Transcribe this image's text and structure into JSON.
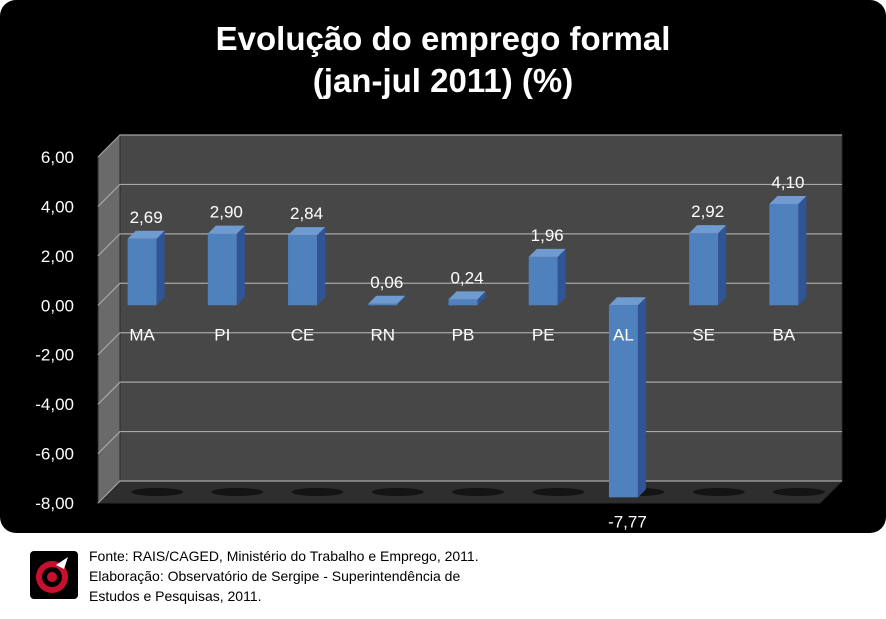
{
  "chart_data": {
    "type": "bar",
    "title_lines": [
      "Evolução do emprego formal",
      "(jan-jul 2011) (%)"
    ],
    "categories": [
      "MA",
      "PI",
      "CE",
      "RN",
      "PB",
      "PE",
      "AL",
      "SE",
      "BA"
    ],
    "values": [
      2.69,
      2.9,
      2.84,
      0.06,
      0.24,
      1.96,
      -7.77,
      2.92,
      4.1
    ],
    "value_labels": [
      "2,69",
      "2,90",
      "2,84",
      "0,06",
      "0,24",
      "1,96",
      "-7,77",
      "2,92",
      "4,10"
    ],
    "ylim": [
      -8,
      6
    ],
    "yticks": [
      6,
      4,
      2,
      0,
      -2,
      -4,
      -6,
      -8
    ],
    "ytick_labels": [
      "6,00",
      "4,00",
      "2,00",
      "0,00",
      "-2,00",
      "-4,00",
      "-6,00",
      "-8,00"
    ],
    "grid": true,
    "bar_color": "#4F81BD",
    "background": "#000000"
  },
  "footer": {
    "source": "Fonte: RAIS/CAGED, Ministério do Trabalho e Emprego, 2011.",
    "credit_line1": "Elaboração: Observatório de Sergipe  - Superintendência de",
    "credit_line2": "Estudos e Pesquisas, 2011.",
    "logo_icon": "observatorio-logo-icon"
  }
}
